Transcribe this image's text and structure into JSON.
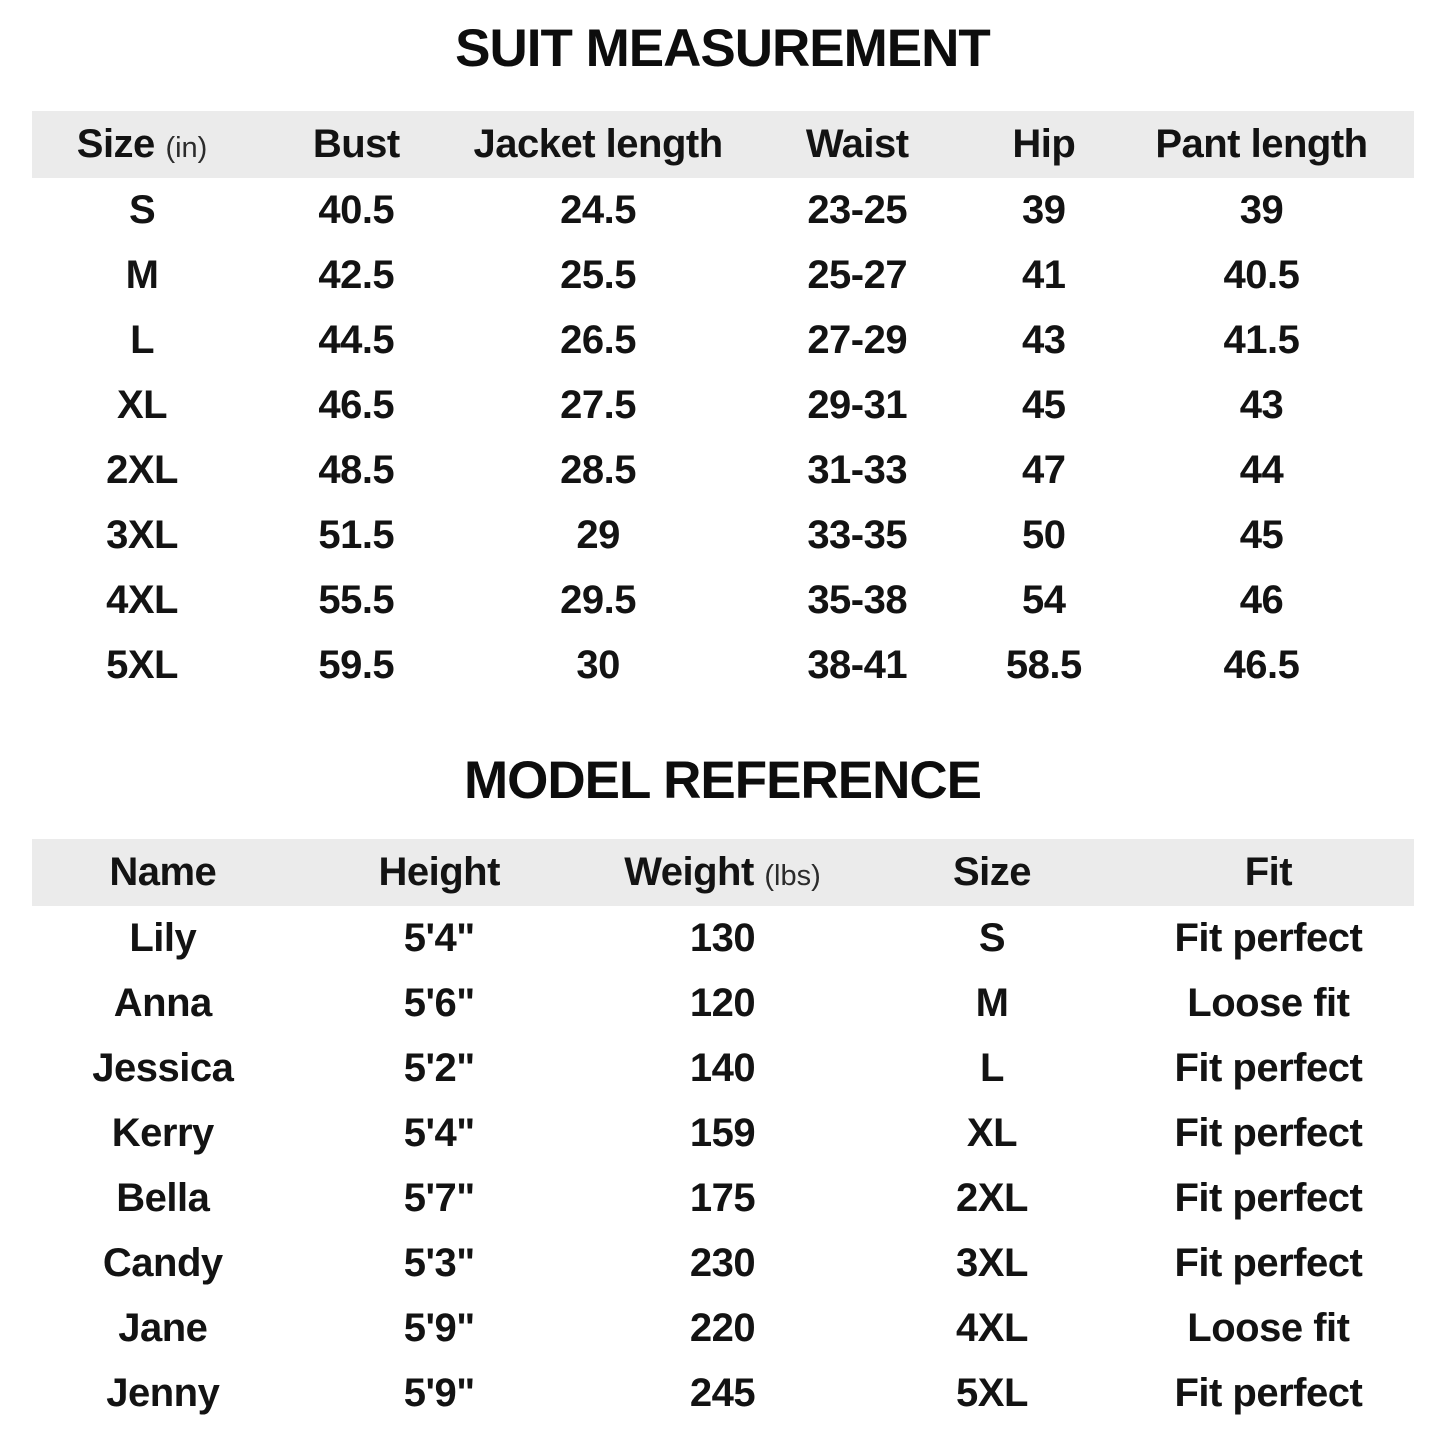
{
  "colors": {
    "background": "#ffffff",
    "header_row_bg": "#ebebeb",
    "text": "#131313"
  },
  "suit": {
    "title": "SUIT MEASUREMENT",
    "header": {
      "size": "Size",
      "size_unit": "(in)",
      "bust": "Bust",
      "jacket_length": "Jacket length",
      "waist": "Waist",
      "hip": "Hip",
      "pant_length": "Pant length"
    },
    "rows": [
      [
        "S",
        "40.5",
        "24.5",
        "23-25",
        "39",
        "39"
      ],
      [
        "M",
        "42.5",
        "25.5",
        "25-27",
        "41",
        "40.5"
      ],
      [
        "L",
        "44.5",
        "26.5",
        "27-29",
        "43",
        "41.5"
      ],
      [
        "XL",
        "46.5",
        "27.5",
        "29-31",
        "45",
        "43"
      ],
      [
        "2XL",
        "48.5",
        "28.5",
        "31-33",
        "47",
        "44"
      ],
      [
        "3XL",
        "51.5",
        "29",
        "33-35",
        "50",
        "45"
      ],
      [
        "4XL",
        "55.5",
        "29.5",
        "35-38",
        "54",
        "46"
      ],
      [
        "5XL",
        "59.5",
        "30",
        "38-41",
        "58.5",
        "46.5"
      ]
    ]
  },
  "model": {
    "title": "MODEL REFERENCE",
    "header": {
      "name": "Name",
      "height": "Height",
      "weight": "Weight",
      "weight_unit": "(lbs)",
      "size": "Size",
      "fit": "Fit"
    },
    "rows": [
      [
        "Lily",
        "5'4\"",
        "130",
        "S",
        "Fit perfect"
      ],
      [
        "Anna",
        "5'6\"",
        "120",
        "M",
        "Loose fit"
      ],
      [
        "Jessica",
        "5'2\"",
        "140",
        "L",
        "Fit perfect"
      ],
      [
        "Kerry",
        "5'4\"",
        "159",
        "XL",
        "Fit perfect"
      ],
      [
        "Bella",
        "5'7\"",
        "175",
        "2XL",
        "Fit perfect"
      ],
      [
        "Candy",
        "5'3\"",
        "230",
        "3XL",
        "Fit perfect"
      ],
      [
        "Jane",
        "5'9\"",
        "220",
        "4XL",
        "Loose fit"
      ],
      [
        "Jenny",
        "5'9\"",
        "245",
        "5XL",
        "Fit perfect"
      ]
    ]
  }
}
